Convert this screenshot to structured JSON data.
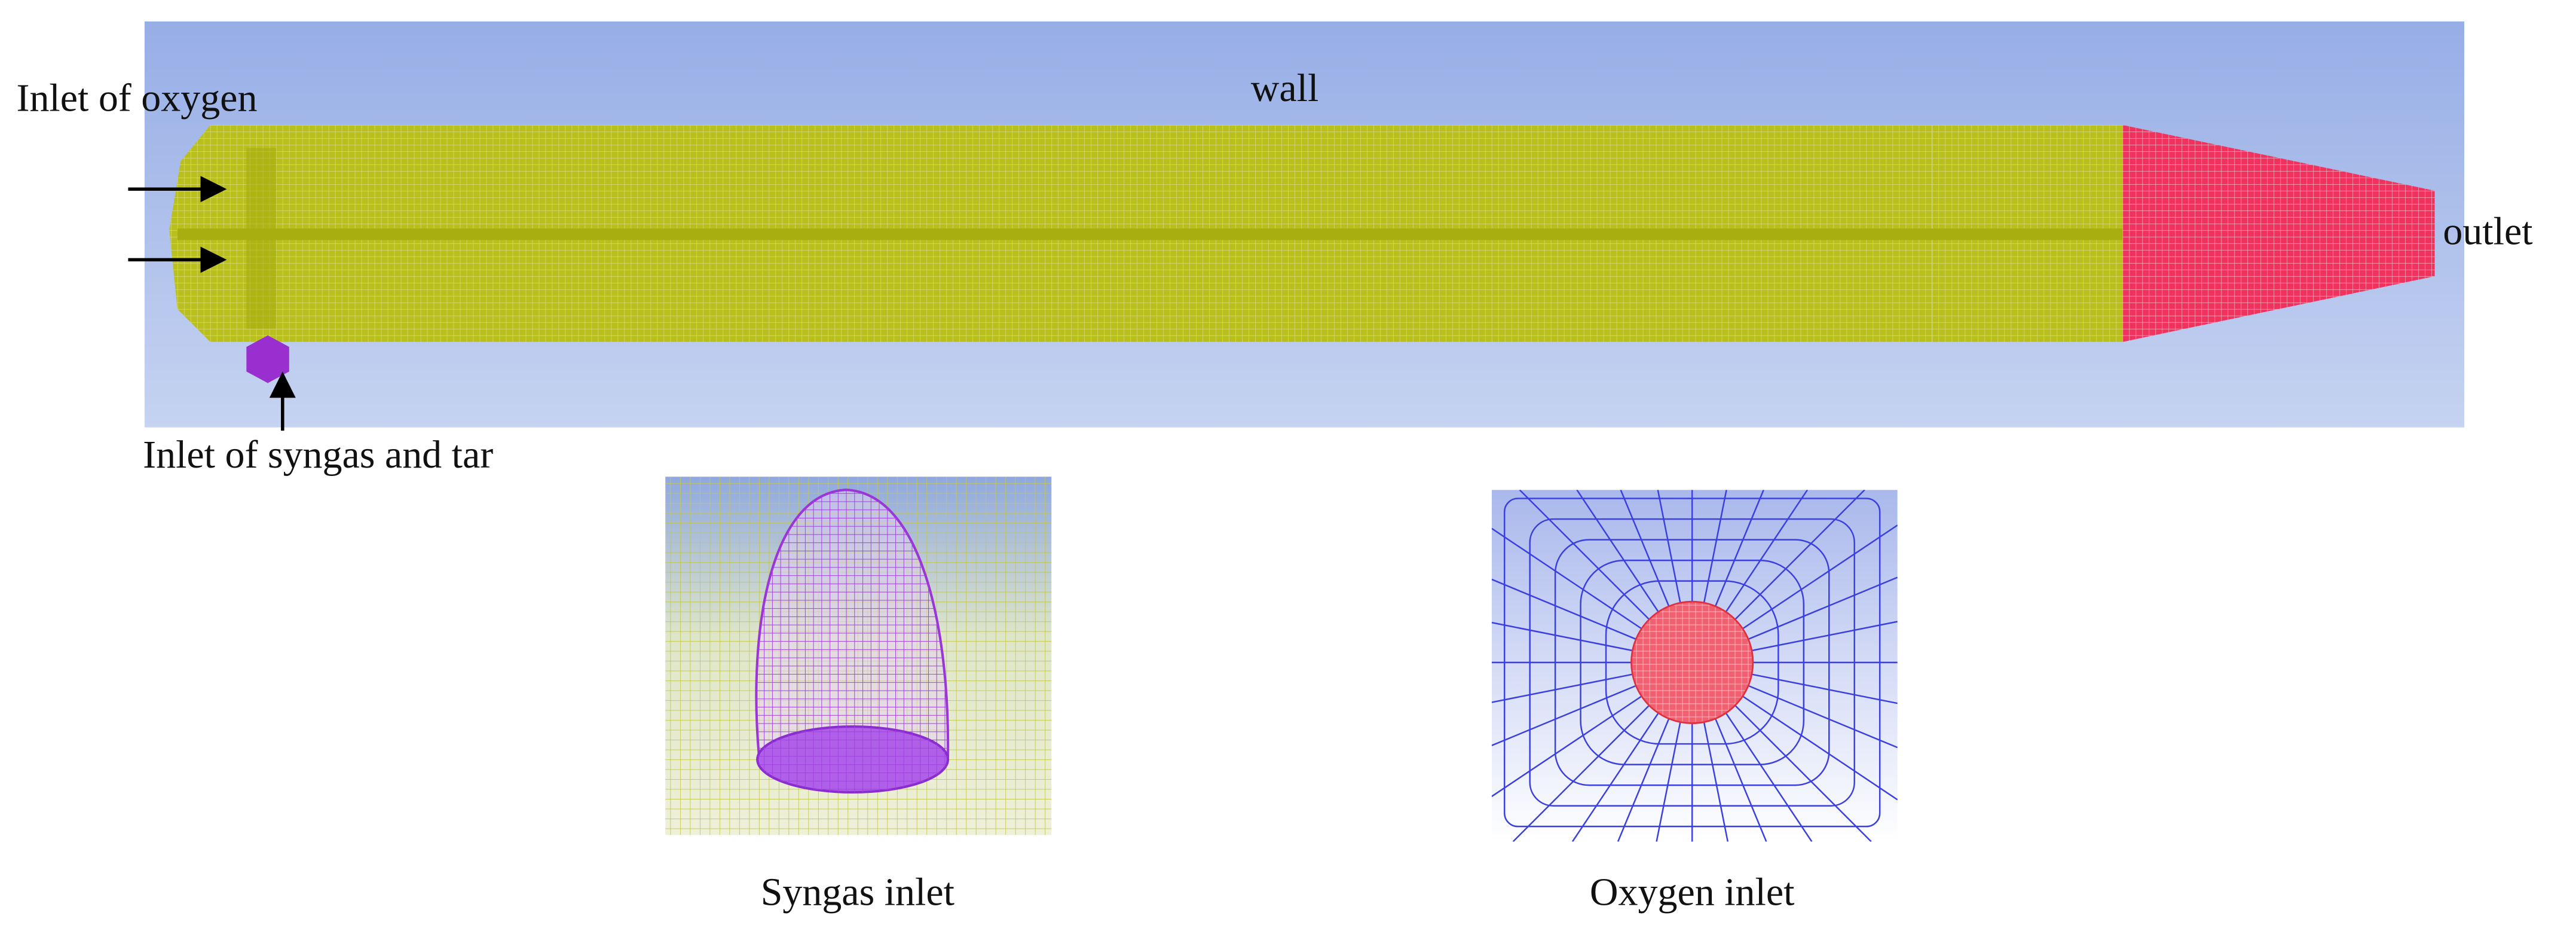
{
  "labels": {
    "oxygen_inlet_arrow": "Inlet of oxygen",
    "wall": "wall",
    "outlet": "outlet",
    "syngas_inlet_arrow": "Inlet of syngas and tar"
  },
  "insets": [
    {
      "caption": "Syngas inlet"
    },
    {
      "caption": "Oxygen inlet"
    }
  ]
}
